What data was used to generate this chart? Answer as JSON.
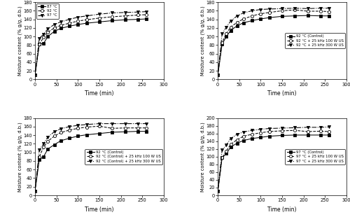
{
  "time": [
    0,
    10,
    20,
    30,
    45,
    60,
    80,
    100,
    120,
    150,
    180,
    210,
    240,
    260
  ],
  "panel_tl": {
    "ylabel": "Moisture content (% g/g, d.b.)",
    "xlabel": "Time (min)",
    "legend_loc": "upper left",
    "ylim": [
      0,
      180
    ],
    "xlim": [
      0,
      300
    ],
    "yticks": [
      0,
      20,
      40,
      60,
      80,
      100,
      120,
      140,
      160,
      180
    ],
    "xticks": [
      0,
      50,
      100,
      150,
      200,
      250,
      300
    ],
    "series": [
      {
        "label": "87 °C",
        "values": [
          10,
          82,
          84,
          100,
          112,
          119,
          124,
          128,
          131,
          134,
          137,
          139,
          140,
          141
        ],
        "marker": "s",
        "linestyle": "-",
        "color": "black",
        "markerfacecolor": "black"
      },
      {
        "label": "92 °C",
        "values": [
          10,
          82,
          98,
          110,
          120,
          126,
          131,
          136,
          139,
          143,
          146,
          148,
          150,
          151
        ],
        "marker": "o",
        "linestyle": "--",
        "color": "black",
        "markerfacecolor": "white"
      },
      {
        "label": "97 °C",
        "values": [
          10,
          96,
          105,
          118,
          128,
          134,
          140,
          145,
          148,
          152,
          155,
          156,
          157,
          158
        ],
        "marker": "v",
        "linestyle": "-.",
        "color": "black",
        "markerfacecolor": "black"
      }
    ]
  },
  "panel_tr": {
    "ylabel": "Moisture content (% g/g, d.b.)",
    "xlabel": "Time (min)",
    "legend_loc": "center right",
    "ylim": [
      0,
      180
    ],
    "xlim": [
      0,
      300
    ],
    "yticks": [
      0,
      20,
      40,
      60,
      80,
      100,
      120,
      140,
      160,
      180
    ],
    "xticks": [
      0,
      50,
      100,
      150,
      200,
      250,
      300
    ],
    "series": [
      {
        "label": "92 °C (Control)",
        "values": [
          10,
          82,
          100,
          114,
          125,
          132,
          137,
          141,
          144,
          147,
          148,
          149,
          148,
          148
        ],
        "marker": "s",
        "linestyle": "-",
        "color": "black",
        "markerfacecolor": "black"
      },
      {
        "label": "92 °C + 25 kHz 100 W US",
        "values": [
          10,
          86,
          107,
          122,
          133,
          141,
          148,
          153,
          156,
          160,
          162,
          159,
          159,
          158
        ],
        "marker": "o",
        "linestyle": "--",
        "color": "black",
        "markerfacecolor": "white"
      },
      {
        "label": "92 °C + 25 kHz 300 W US",
        "values": [
          10,
          106,
          122,
          136,
          148,
          155,
          160,
          163,
          164,
          165,
          166,
          165,
          166,
          166
        ],
        "marker": "v",
        "linestyle": "-.",
        "color": "black",
        "markerfacecolor": "black"
      }
    ]
  },
  "panel_bl": {
    "ylabel": "Moisture content (% g/g, d.b.)",
    "xlabel": "Time (min)",
    "legend_loc": "center right",
    "ylim": [
      0,
      180
    ],
    "xlim": [
      0,
      300
    ],
    "yticks": [
      0,
      20,
      40,
      60,
      80,
      100,
      120,
      140,
      160,
      180
    ],
    "xticks": [
      0,
      50,
      100,
      150,
      200,
      250,
      300
    ],
    "series": [
      {
        "label": "92 °C (Control)",
        "values": [
          10,
          83,
          90,
          108,
          118,
          127,
          133,
          138,
          141,
          144,
          147,
          148,
          149,
          149
        ],
        "marker": "s",
        "linestyle": "-",
        "color": "black",
        "markerfacecolor": "black"
      },
      {
        "label": "92 °C (Control) + 25 kHz 100 W US",
        "values": [
          10,
          90,
          112,
          126,
          138,
          146,
          152,
          156,
          159,
          161,
          156,
          157,
          157,
          157
        ],
        "marker": "o",
        "linestyle": "--",
        "color": "black",
        "markerfacecolor": "white"
      },
      {
        "label": "92 °C (Control) + 25 kHz 300 W US",
        "values": [
          10,
          106,
          120,
          136,
          148,
          155,
          160,
          163,
          165,
          167,
          167,
          167,
          167,
          167
        ],
        "marker": "v",
        "linestyle": "-.",
        "color": "black",
        "markerfacecolor": "black"
      }
    ]
  },
  "panel_br": {
    "ylabel": "Moisture content (% g/g, d.b.)",
    "xlabel": "Time (min)",
    "legend_loc": "center right",
    "ylim": [
      0,
      200
    ],
    "xlim": [
      0,
      300
    ],
    "yticks": [
      0,
      20,
      40,
      60,
      80,
      100,
      120,
      140,
      160,
      180,
      200
    ],
    "xticks": [
      0,
      50,
      100,
      150,
      200,
      250,
      300
    ],
    "series": [
      {
        "label": "97 °C (Control)",
        "values": [
          10,
          97,
          108,
          125,
          135,
          142,
          147,
          150,
          153,
          155,
          156,
          156,
          156,
          156
        ],
        "marker": "s",
        "linestyle": "-",
        "color": "black",
        "markerfacecolor": "black"
      },
      {
        "label": "97 °C + 25 kHz 100 W US",
        "values": [
          10,
          97,
          115,
          132,
          144,
          153,
          158,
          162,
          165,
          167,
          168,
          165,
          166,
          165
        ],
        "marker": "o",
        "linestyle": "--",
        "color": "black",
        "markerfacecolor": "white"
      },
      {
        "label": "97 °C + 25 kHz 300 W US",
        "values": [
          10,
          117,
          130,
          147,
          158,
          164,
          168,
          171,
          173,
          174,
          175,
          176,
          176,
          177
        ],
        "marker": "v",
        "linestyle": "-.",
        "color": "black",
        "markerfacecolor": "black"
      }
    ]
  }
}
